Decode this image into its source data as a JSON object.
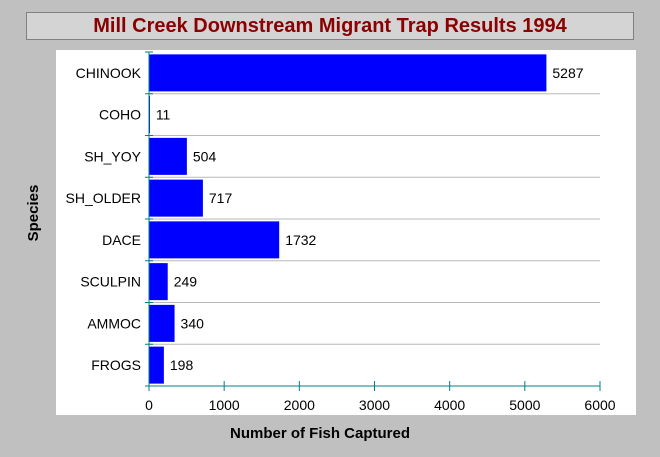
{
  "chart_data": {
    "type": "bar",
    "orientation": "horizontal",
    "title": "Mill Creek Downstream Migrant Trap Results 1994",
    "xlabel": "Number of Fish Captured",
    "ylabel": "Species",
    "categories": [
      "CHINOOK",
      "COHO",
      "SH_YOY",
      "SH_OLDER",
      "DACE",
      "SCULPIN",
      "AMMOC",
      "FROGS"
    ],
    "values": [
      5287,
      11,
      504,
      717,
      1732,
      249,
      340,
      198
    ],
    "xlim": [
      0,
      6000
    ],
    "xticks": [
      0,
      1000,
      2000,
      3000,
      4000,
      5000,
      6000
    ],
    "grid": "horizontal",
    "bar_color": "#0000ff",
    "title_color": "#8b0000"
  }
}
